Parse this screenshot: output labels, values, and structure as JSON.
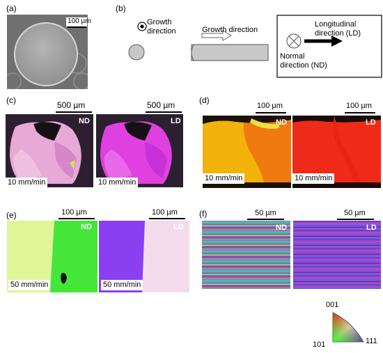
{
  "panels": {
    "a": {
      "label": "(a)",
      "scale": "100 µm"
    },
    "b": {
      "label": "(b)",
      "growth_direction_circle": "Growth direction",
      "growth_direction_rod": "Growth direction",
      "longitudinal": "Longitudinal direction (LD)",
      "normal": "Normal direction (ND)"
    },
    "c": {
      "label": "(c)",
      "left_scale": "500 µm",
      "right_scale": "500 µm",
      "left_dir": "ND",
      "right_dir": "LD",
      "left_speed": "10 mm/min",
      "right_speed": "10 mm/min"
    },
    "d": {
      "label": "(d)",
      "left_scale": "100 µm",
      "right_scale": "100 µm",
      "left_dir": "ND",
      "right_dir": "LD",
      "left_speed": "10 mm/min",
      "right_speed": "10 mm/min"
    },
    "e": {
      "label": "(e)",
      "left_scale": "100 µm",
      "right_scale": "100 µm",
      "left_dir": "ND",
      "right_dir": "LD",
      "left_speed": "50 mm/min",
      "right_speed": "50 mm/min"
    },
    "f": {
      "label": "(f)",
      "left_scale": "50 µm",
      "right_scale": "50 µm",
      "left_dir": "ND",
      "right_dir": "LD"
    }
  },
  "legend": {
    "top": "001",
    "left": "101",
    "right": "111"
  }
}
